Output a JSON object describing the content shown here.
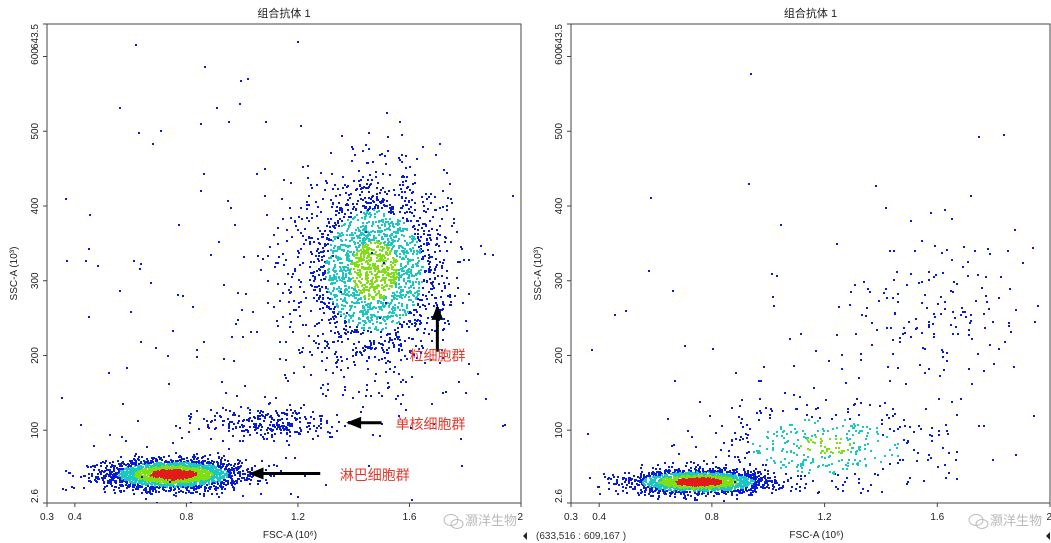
{
  "chart_data": [
    {
      "type": "scatter",
      "title": "组合抗体 1",
      "xlabel": "FSC-A (10⁶)",
      "ylabel": "SSC-A (10³)",
      "xlim": [
        0.3,
        2.0
      ],
      "ylim": [
        2.6,
        643.5
      ],
      "x_ticks": [
        "0.3",
        "0.4",
        "0.8",
        "1.2",
        "1.6",
        "2"
      ],
      "y_ticks": [
        "2.6",
        "100",
        "200",
        "300",
        "400",
        "500",
        "600",
        "643.5"
      ],
      "grid": false,
      "populations": [
        {
          "cx": 0.75,
          "cy": 42,
          "sx": 0.12,
          "sy": 10,
          "n": 2600
        },
        {
          "cx": 1.47,
          "cy": 315,
          "sx": 0.13,
          "sy": 60,
          "n": 2300
        },
        {
          "cx": 1.1,
          "cy": 110,
          "sx": 0.12,
          "sy": 12,
          "n": 260
        },
        {
          "cx": 1.0,
          "cy": 250,
          "sx": 0.5,
          "sy": 180,
          "n": 220
        }
      ],
      "annotations": [
        {
          "text": "粒细胞群",
          "x": 1.6,
          "y": 200,
          "arrow_from": [
            1.7,
            205
          ],
          "arrow_to": [
            1.7,
            265
          ]
        },
        {
          "text": "单核细胞群",
          "x": 1.55,
          "y": 108,
          "arrow_from": [
            1.5,
            110
          ],
          "arrow_to": [
            1.38,
            110
          ]
        },
        {
          "text": "淋巴细胞群",
          "x": 1.35,
          "y": 40,
          "arrow_from": [
            1.28,
            42
          ],
          "arrow_to": [
            1.03,
            42
          ]
        }
      ]
    },
    {
      "type": "scatter",
      "title": "组合抗体 1",
      "xlabel": "FSC-A (10⁶)",
      "ylabel": "SSC-A (10³)",
      "xlim": [
        0.3,
        2.0
      ],
      "ylim": [
        2.6,
        643.5
      ],
      "x_ticks": [
        "0.3",
        "0.4",
        "0.8",
        "1.2",
        "1.6",
        "2"
      ],
      "y_ticks": [
        "2.6",
        "100",
        "200",
        "300",
        "400",
        "500",
        "600",
        "643.5"
      ],
      "grid": false,
      "populations": [
        {
          "cx": 0.75,
          "cy": 32,
          "sx": 0.12,
          "sy": 8,
          "n": 2000
        },
        {
          "cx": 1.2,
          "cy": 80,
          "sx": 0.22,
          "sy": 30,
          "n": 420
        },
        {
          "cx": 1.6,
          "cy": 260,
          "sx": 0.18,
          "sy": 60,
          "n": 160
        },
        {
          "cx": 1.1,
          "cy": 200,
          "sx": 0.5,
          "sy": 160,
          "n": 60
        }
      ],
      "annotations": []
    }
  ],
  "coord_readout": "(633,516 : 609,167 )",
  "watermark": "灏洋生物",
  "colors": {
    "low": "#0a1bd6",
    "mid": "#19c8c0",
    "high": "#7fe011",
    "peak": "#e21a1a",
    "axis": "#444444",
    "annotation": "#e23b2e",
    "arrow": "#000000"
  }
}
